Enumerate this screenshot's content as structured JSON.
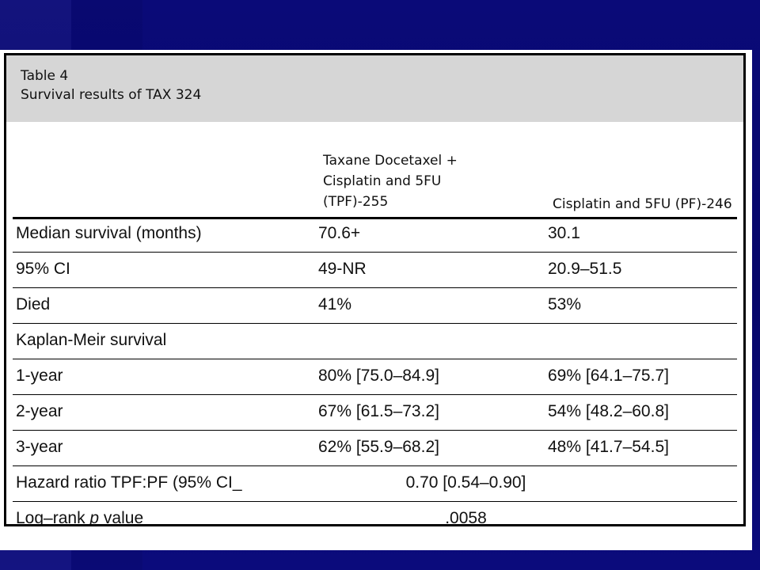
{
  "table": {
    "caption_line1": "Table 4",
    "caption_line2": "Survival results of TAX 324",
    "header": {
      "col1_line1": "Taxane Docetaxel +",
      "col1_line2": "Cisplatin and 5FU",
      "col1_line3": "(TPF)-255",
      "col2": "Cisplatin and 5FU (PF)-246"
    },
    "rows": [
      {
        "label": "Median survival (months)",
        "tpf": "70.6+",
        "pf": "30.1"
      },
      {
        "label": "95% CI",
        "tpf": "49-NR",
        "pf": "20.9–51.5"
      },
      {
        "label": "Died",
        "tpf": "41%",
        "pf": "53%"
      },
      {
        "label": "Kaplan-Meir survival",
        "tpf": "",
        "pf": ""
      },
      {
        "label": "1-year",
        "tpf": "80% [75.0–84.9]",
        "pf": "69% [64.1–75.7]"
      },
      {
        "label": "2-year",
        "tpf": "67% [61.5–73.2]",
        "pf": "54% [48.2–60.8]"
      },
      {
        "label": "3-year",
        "tpf": "62% [55.9–68.2]",
        "pf": "48% [41.7–54.5]"
      }
    ],
    "hazard": {
      "label": "Hazard ratio TPF:PF (95% CI_",
      "value": "0.70 [0.54–0.90]"
    },
    "logrank": {
      "label_prefix": "Log–rank ",
      "label_italic": "p",
      "label_suffix": " value",
      "value": ".0058"
    }
  }
}
